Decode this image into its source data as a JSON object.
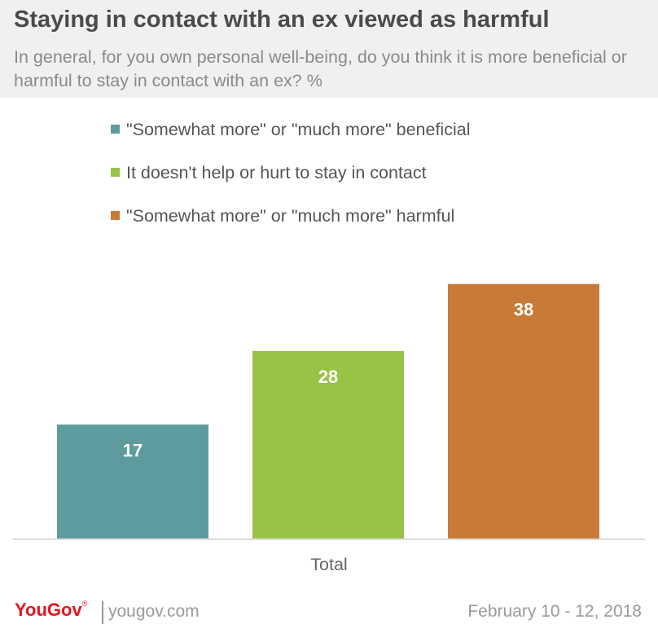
{
  "header": {
    "title": "Staying in contact with an ex viewed as harmful",
    "subtitle": "In general, for you own personal well-being, do you think it is more beneficial or harmful to stay in contact with an ex? %"
  },
  "chart_data": {
    "type": "bar",
    "categories": [
      "Total"
    ],
    "series": [
      {
        "name": "\"Somewhat more\" or \"much more\" beneficial",
        "values": [
          17
        ],
        "color": "#5e9b9e"
      },
      {
        "name": "It doesn't help or hurt to stay in contact",
        "values": [
          28
        ],
        "color": "#99c346"
      },
      {
        "name": "\"Somewhat more\" or \"much more\" harmful",
        "values": [
          38
        ],
        "color": "#c97a38"
      }
    ],
    "ylim": [
      0,
      40
    ],
    "grid": false,
    "legend": "top-left",
    "xlabel": "",
    "ylabel": ""
  },
  "footer": {
    "brand": "YouGov",
    "site": "yougov.com",
    "date": "February 10 - 12, 2018"
  }
}
